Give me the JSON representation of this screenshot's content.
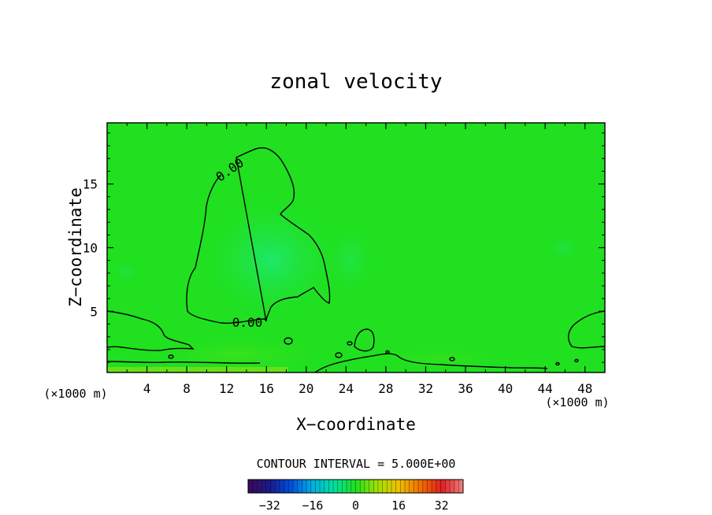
{
  "chart_data": {
    "type": "contour",
    "title": "zonal velocity",
    "xlabel": "X−coordinate",
    "ylabel": "Z−coordinate",
    "x_unit_left": "(×1000 m)",
    "x_unit_right": "(×1000 m)",
    "xlim": [
      0,
      50
    ],
    "ylim": [
      0.2,
      19.8
    ],
    "x_ticks": [
      4,
      8,
      12,
      16,
      20,
      24,
      28,
      32,
      36,
      40,
      44,
      48
    ],
    "y_ticks": [
      5,
      10,
      15
    ],
    "contour_interval_text": "CONTOUR INTERVAL = 5.000E+00",
    "contour_levels": [
      0
    ],
    "contour_labels": [
      {
        "text": "0.00",
        "x": 12.5,
        "z": 15.5
      },
      {
        "text": "0.00",
        "x": 14.2,
        "z": 4.0
      }
    ],
    "colorbar": {
      "range": [
        -40,
        40
      ],
      "ticks": [
        -32,
        -16,
        0,
        16,
        32
      ],
      "tick_labels": [
        "−32",
        "−16",
        "0",
        "16",
        "32"
      ],
      "colors": [
        "#3a0a5a",
        "#1a1a8a",
        "#0050e0",
        "#00b0e0",
        "#00e0a0",
        "#20e020",
        "#a0e000",
        "#f0c000",
        "#f07000",
        "#e02020",
        "#f08080"
      ]
    },
    "field_base_color": "#20e020"
  }
}
